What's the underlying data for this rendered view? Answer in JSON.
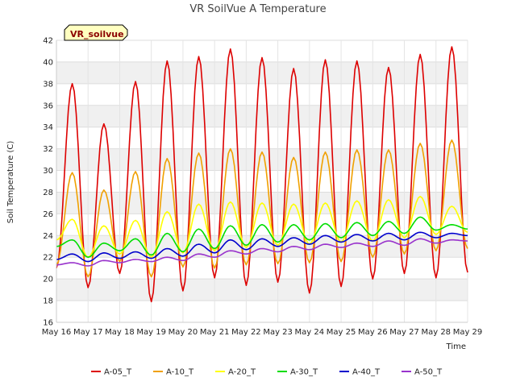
{
  "chart_data": {
    "type": "line",
    "title": "VR SoilVue A Temperature",
    "xlabel": "Time",
    "ylabel": "Soil Temperature (C)",
    "site_badge": "VR_soilvue",
    "ylim": [
      16,
      42
    ],
    "yticks": [
      16,
      18,
      20,
      22,
      24,
      26,
      28,
      30,
      32,
      34,
      36,
      38,
      40,
      42
    ],
    "xlim": [
      0,
      13
    ],
    "xtick_labels": [
      "May 16",
      "May 17",
      "May 18",
      "May 19",
      "May 20",
      "May 21",
      "May 22",
      "May 23",
      "May 24",
      "May 25",
      "May 26",
      "May 27",
      "May 28",
      "May 29"
    ],
    "grid": true,
    "legend_position": "bottom",
    "series": [
      {
        "name": "A-05_T",
        "color": "#dd0000",
        "min": [
          21.0,
          19.2,
          20.5,
          17.9,
          18.9,
          20.1,
          19.4,
          19.7,
          18.7,
          19.3,
          20.0,
          20.5,
          20.1,
          20.6
        ],
        "max": [
          38.0,
          34.3,
          38.2,
          40.1,
          40.5,
          41.2,
          40.4,
          39.4,
          40.2,
          40.1,
          39.5,
          40.7,
          41.4
        ]
      },
      {
        "name": "A-10_T",
        "color": "#f0a000",
        "min": [
          21.3,
          20.2,
          21.6,
          20.2,
          21.1,
          21.0,
          21.3,
          21.4,
          21.5,
          21.6,
          22.0,
          22.3,
          22.6,
          22.8
        ],
        "max": [
          29.8,
          28.2,
          29.9,
          31.1,
          31.6,
          32.0,
          31.7,
          31.2,
          31.7,
          31.9,
          31.9,
          32.5,
          32.8
        ]
      },
      {
        "name": "A-20_T",
        "color": "#ffff00",
        "min": [
          23.6,
          22.0,
          22.3,
          22.0,
          22.4,
          22.6,
          22.9,
          23.1,
          23.2,
          23.4,
          23.5,
          23.8,
          24.1,
          24.3
        ],
        "max": [
          25.5,
          24.9,
          25.4,
          26.2,
          26.9,
          27.1,
          27.0,
          26.9,
          27.0,
          27.2,
          27.3,
          27.6,
          26.7
        ]
      },
      {
        "name": "A-30_T",
        "color": "#00dd00",
        "min": [
          23.0,
          22.0,
          22.6,
          22.2,
          22.5,
          22.8,
          23.1,
          23.4,
          23.6,
          23.8,
          24.0,
          24.2,
          24.5,
          24.6
        ],
        "max": [
          23.6,
          23.3,
          23.7,
          24.2,
          24.6,
          24.9,
          25.0,
          25.0,
          25.1,
          25.2,
          25.3,
          25.7,
          25.0
        ]
      },
      {
        "name": "A-40_T",
        "color": "#0000cc",
        "min": [
          21.8,
          21.6,
          21.9,
          21.9,
          22.1,
          22.4,
          22.7,
          23.0,
          23.2,
          23.4,
          23.5,
          23.6,
          23.8,
          24.0
        ],
        "max": [
          22.3,
          22.4,
          22.5,
          22.8,
          23.2,
          23.6,
          23.7,
          23.8,
          24.0,
          24.1,
          24.2,
          24.3,
          24.2
        ]
      },
      {
        "name": "A-50_T",
        "color": "#9933cc",
        "min": [
          21.3,
          21.2,
          21.5,
          21.6,
          21.7,
          22.0,
          22.3,
          22.5,
          22.7,
          22.9,
          23.0,
          23.1,
          23.3,
          23.5
        ],
        "max": [
          21.5,
          21.7,
          21.8,
          22.0,
          22.3,
          22.6,
          22.8,
          23.0,
          23.2,
          23.3,
          23.5,
          23.7,
          23.6
        ]
      }
    ]
  }
}
